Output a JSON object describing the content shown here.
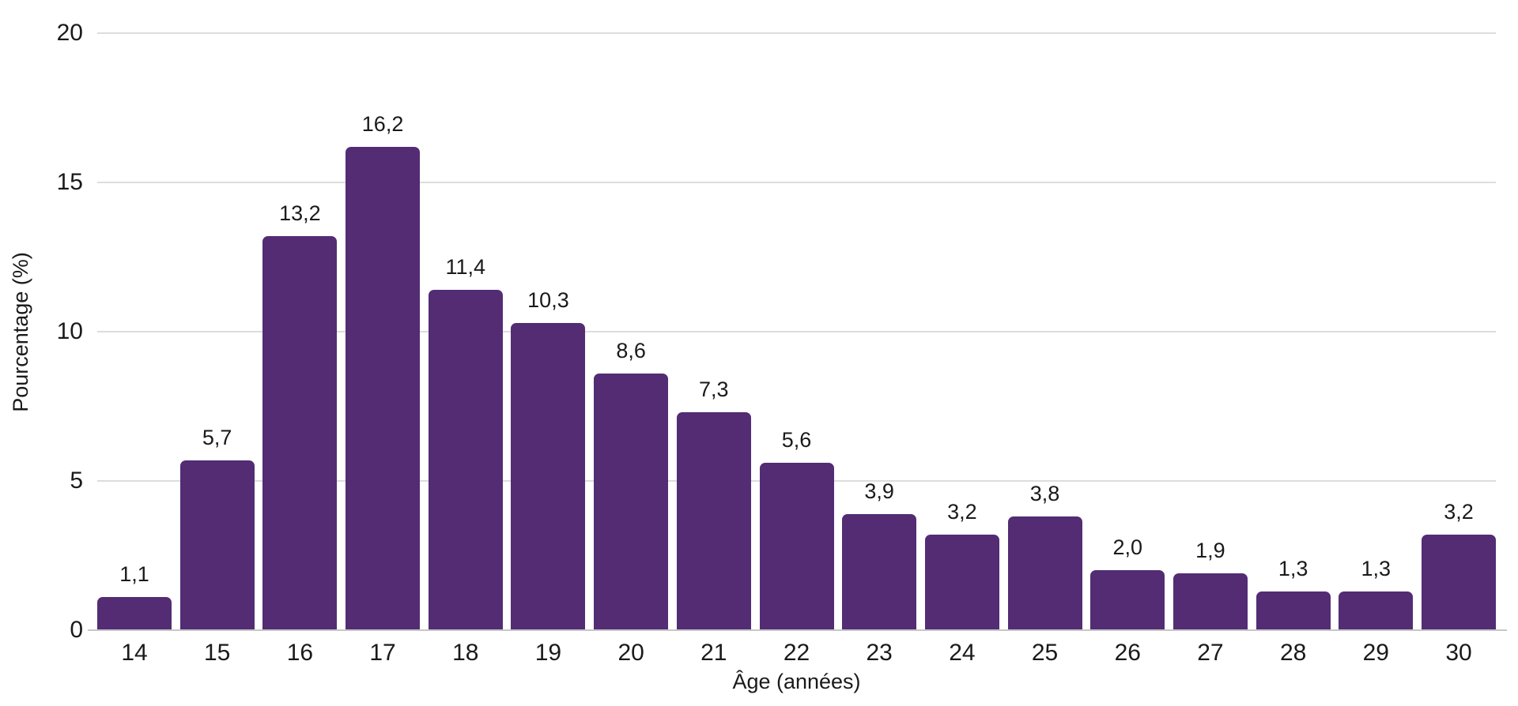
{
  "chart_data": {
    "type": "bar",
    "title": "",
    "xlabel": "Âge (années)",
    "ylabel": "Pourcentage (%)",
    "categories": [
      "14",
      "15",
      "16",
      "17",
      "18",
      "19",
      "20",
      "21",
      "22",
      "23",
      "24",
      "25",
      "26",
      "27",
      "28",
      "29",
      "30"
    ],
    "values": [
      1.1,
      5.7,
      13.2,
      16.2,
      11.4,
      10.3,
      8.6,
      7.3,
      5.6,
      3.9,
      3.2,
      3.8,
      2.0,
      1.9,
      1.3,
      1.3,
      3.2
    ],
    "value_labels": [
      "1,1",
      "5,7",
      "13,2",
      "16,2",
      "11,4",
      "10,3",
      "8,6",
      "7,3",
      "5,6",
      "3,9",
      "3,2",
      "3,8",
      "2,0",
      "1,9",
      "1,3",
      "1,3",
      "3,2"
    ],
    "yticks": [
      0,
      5,
      10,
      15,
      20
    ],
    "ytick_labels": [
      "0",
      "5",
      "10",
      "15",
      "20"
    ],
    "ylim": [
      0,
      20
    ],
    "grid": "horizontal",
    "legend": "none",
    "bar_color": "#532c74",
    "gridline_color": "#dddddd",
    "axis_line_color": "#c6c6c6",
    "text_color": "#1a1a1a"
  }
}
